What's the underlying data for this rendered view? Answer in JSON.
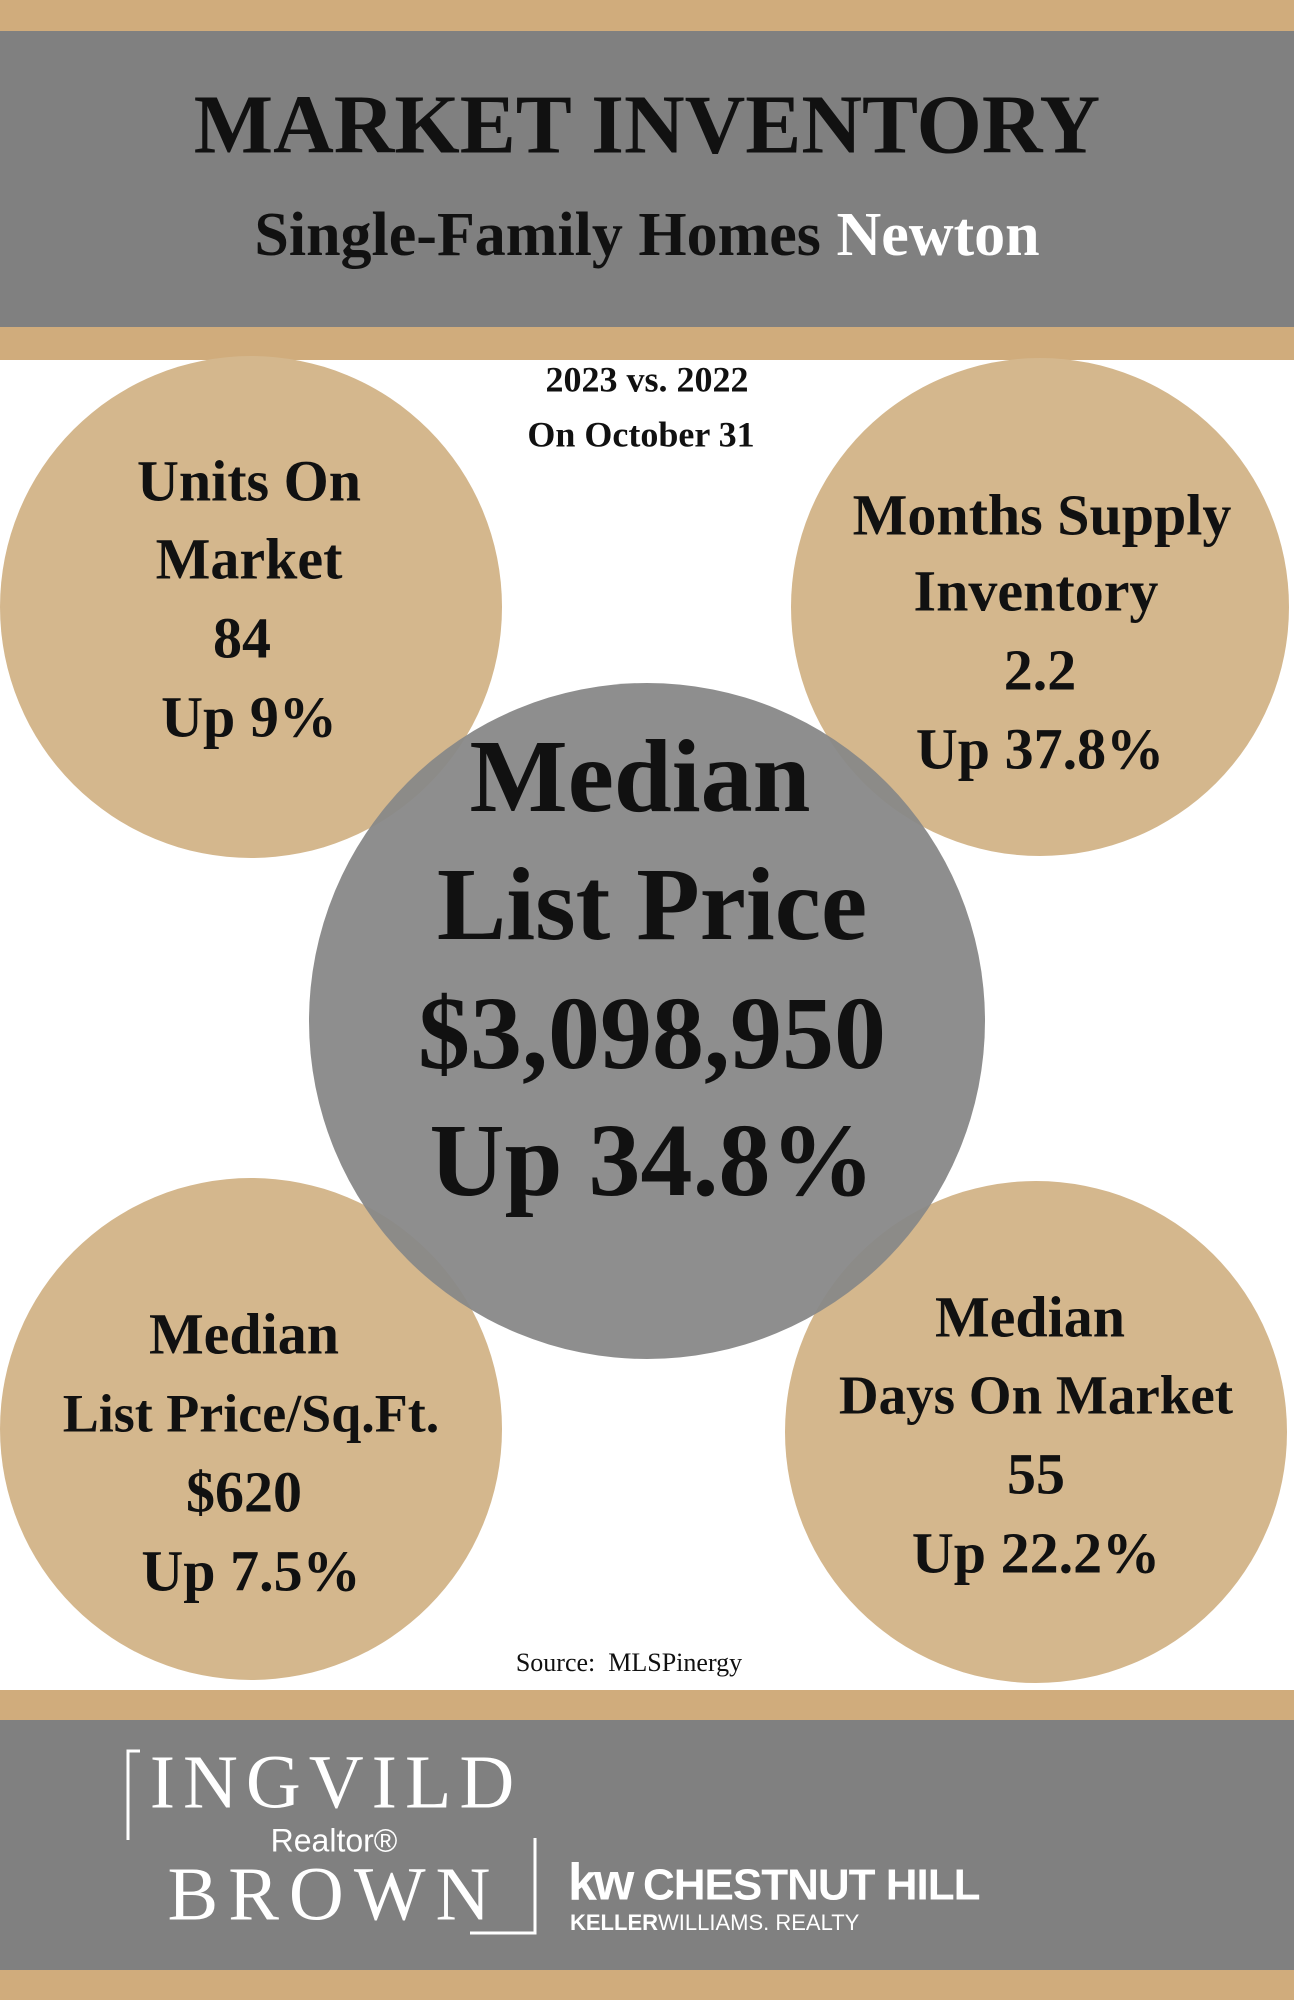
{
  "header": {
    "title": "MARKET INVENTORY",
    "subtitle": "Single-Family Homes",
    "location": "Newton"
  },
  "period": {
    "comparison": "2023 vs. 2022",
    "date": "On October 31"
  },
  "stats": [
    {
      "label_lines": [
        "Units On",
        "Market"
      ],
      "value": "84",
      "change": "Up 9%"
    },
    {
      "label_lines": [
        "Months Supply",
        "Inventory"
      ],
      "value": "2.2",
      "change": "Up 37.8%"
    },
    {
      "label_lines": [
        "Median",
        "List Price"
      ],
      "value": "$3,098,950",
      "change": "Up 34.8%"
    },
    {
      "label_lines": [
        "Median",
        "List Price/Sq.Ft."
      ],
      "value": "$620",
      "change": "Up 7.5%"
    },
    {
      "label_lines": [
        "Median",
        "Days On Market"
      ],
      "value": "55",
      "change": "Up 22.2%"
    }
  ],
  "source": "Source:  MLSPinergy",
  "footer": {
    "agent_first": "INGVILD",
    "agent_title": "Realtor®",
    "agent_last": "BROWN",
    "brokerage_mark": "kw",
    "brokerage_name": "CHESTNUT HILL",
    "brokerage_sub_1": "KELLER",
    "brokerage_sub_2": "WILLIAMS. REALTY"
  }
}
